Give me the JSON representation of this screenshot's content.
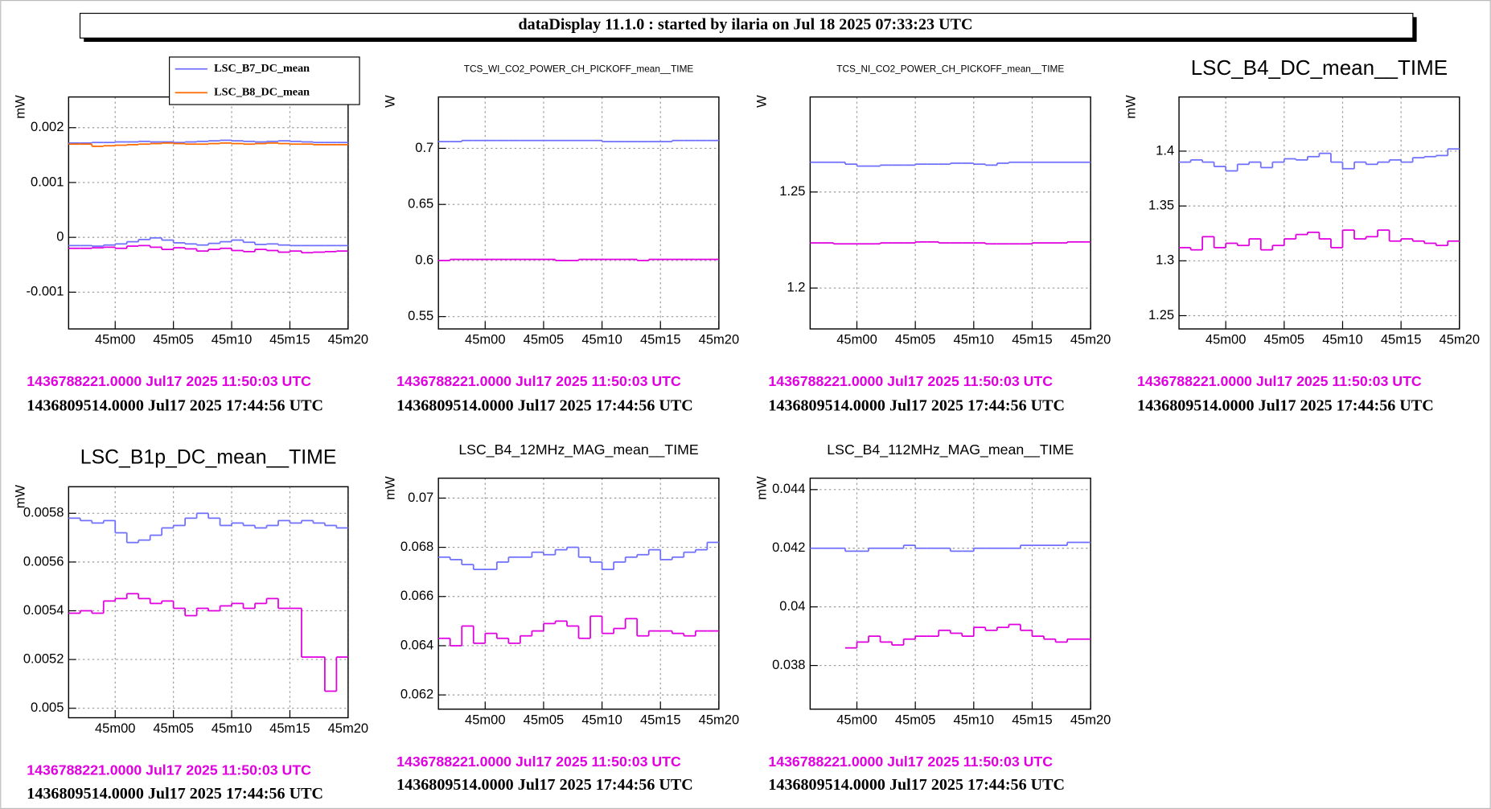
{
  "header": {
    "title": "dataDisplay 11.1.0 : started by ilaria on Jul 18 2025 07:33:23 UTC"
  },
  "chart_data": [
    {
      "type": "line",
      "ylabel": "mW",
      "x": [
        2696,
        2697,
        2698,
        2699,
        2700,
        2701,
        2702,
        2703,
        2704,
        2705,
        2706,
        2707,
        2708,
        2709,
        2710,
        2711,
        2712,
        2713,
        2714,
        2715,
        2716,
        2717,
        2718,
        2719
      ],
      "xlim": [
        2696,
        2720
      ],
      "xticks": [
        {
          "value": 2700,
          "label": "45m00"
        },
        {
          "value": 2705,
          "label": "45m05"
        },
        {
          "value": 2710,
          "label": "45m10"
        },
        {
          "value": 2715,
          "label": "45m15"
        },
        {
          "value": 2720,
          "label": "45m20"
        }
      ],
      "ylim": [
        -0.00167,
        0.00256
      ],
      "yticks": [
        -0.001,
        0,
        0.001,
        0.002
      ],
      "grid": true,
      "series": [
        {
          "name": "LSC_B7_DC_mean",
          "color": "#7070ff",
          "values": [
            0.00172,
            0.00172,
            0.00173,
            0.00173,
            0.00174,
            0.00174,
            0.00175,
            0.00174,
            0.00174,
            0.00173,
            0.00174,
            0.00175,
            0.00176,
            0.00177,
            0.00176,
            0.00175,
            0.00174,
            0.00175,
            0.00176,
            0.00175,
            0.00174,
            0.00173,
            0.00173,
            0.00173
          ]
        },
        {
          "name": "LSC_B8_DC_mean",
          "color": "#ff6a00",
          "values": [
            0.0017,
            0.0017,
            0.00166,
            0.00167,
            0.00168,
            0.00169,
            0.0017,
            0.00171,
            0.00172,
            0.00171,
            0.0017,
            0.0017,
            0.00171,
            0.00172,
            0.00171,
            0.0017,
            0.00171,
            0.00172,
            0.00171,
            0.0017,
            0.0017,
            0.00169,
            0.00169,
            0.00169
          ]
        },
        {
          "color": "#7070ff",
          "values": [
            -0.00015,
            -0.00015,
            -0.00016,
            -0.00014,
            -0.00012,
            -8e-05,
            -4e-05,
            -1e-05,
            -5e-05,
            -0.0001,
            -0.00012,
            -0.00014,
            -0.00011,
            -8e-05,
            -5e-05,
            -9e-05,
            -0.00013,
            -0.00012,
            -0.00014,
            -0.00015,
            -0.00015,
            -0.00015,
            -0.00015,
            -0.00015
          ]
        },
        {
          "color": "#e000e0",
          "values": [
            -0.0002,
            -0.0002,
            -0.00019,
            -0.00018,
            -0.0002,
            -0.00016,
            -0.00015,
            -0.00018,
            -0.00022,
            -0.00019,
            -0.00021,
            -0.00025,
            -0.00022,
            -0.0002,
            -0.00024,
            -0.00026,
            -0.00022,
            -0.00024,
            -0.00027,
            -0.00025,
            -0.00028,
            -0.00027,
            -0.00026,
            -0.00025
          ]
        }
      ],
      "annotations": [
        "1436788221.0000 Jul17 2025 11:50:03 UTC",
        "1436809514.0000 Jul17 2025 17:44:56 UTC"
      ]
    },
    {
      "type": "line",
      "title": "TCS_WI_CO2_POWER_CH_PICKOFF_mean__TIME",
      "ylabel": "W",
      "x": [
        2696,
        2697,
        2698,
        2699,
        2700,
        2701,
        2702,
        2703,
        2704,
        2705,
        2706,
        2707,
        2708,
        2709,
        2710,
        2711,
        2712,
        2713,
        2714,
        2715,
        2716,
        2717,
        2718,
        2719
      ],
      "xlim": [
        2696,
        2720
      ],
      "xticks": [
        {
          "value": 2700,
          "label": "45m00"
        },
        {
          "value": 2705,
          "label": "45m05"
        },
        {
          "value": 2710,
          "label": "45m10"
        },
        {
          "value": 2715,
          "label": "45m15"
        },
        {
          "value": 2720,
          "label": "45m20"
        }
      ],
      "ylim": [
        0.539,
        0.7458
      ],
      "yticks": [
        0.55,
        0.6,
        0.65,
        0.7
      ],
      "grid": true,
      "series": [
        {
          "color": "#7070ff",
          "values": [
            0.706,
            0.706,
            0.707,
            0.707,
            0.707,
            0.707,
            0.707,
            0.707,
            0.707,
            0.707,
            0.707,
            0.707,
            0.707,
            0.707,
            0.706,
            0.706,
            0.706,
            0.706,
            0.706,
            0.706,
            0.707,
            0.707,
            0.707,
            0.707
          ]
        },
        {
          "color": "#e000e0",
          "values": [
            0.6,
            0.601,
            0.601,
            0.601,
            0.601,
            0.601,
            0.601,
            0.601,
            0.601,
            0.601,
            0.6,
            0.6,
            0.601,
            0.601,
            0.601,
            0.601,
            0.601,
            0.6,
            0.601,
            0.601,
            0.601,
            0.601,
            0.601,
            0.601
          ]
        }
      ],
      "annotations": [
        "1436788221.0000 Jul17 2025 11:50:03 UTC",
        "1436809514.0000 Jul17 2025 17:44:56 UTC"
      ]
    },
    {
      "type": "line",
      "title": "TCS_NI_CO2_POWER_CH_PICKOFF_mean__TIME",
      "ylabel": "W",
      "x": [
        2696,
        2697,
        2698,
        2699,
        2700,
        2701,
        2702,
        2703,
        2704,
        2705,
        2706,
        2707,
        2708,
        2709,
        2710,
        2711,
        2712,
        2713,
        2714,
        2715,
        2716,
        2717,
        2718,
        2719
      ],
      "xlim": [
        2696,
        2720
      ],
      "xticks": [
        {
          "value": 2700,
          "label": "45m00"
        },
        {
          "value": 2705,
          "label": "45m05"
        },
        {
          "value": 2710,
          "label": "45m10"
        },
        {
          "value": 2715,
          "label": "45m15"
        },
        {
          "value": 2720,
          "label": "45m20"
        }
      ],
      "ylim": [
        1.1787,
        1.2995
      ],
      "yticks": [
        1.2,
        1.25
      ],
      "grid": true,
      "series": [
        {
          "color": "#7070ff",
          "values": [
            1.2655,
            1.2655,
            1.2655,
            1.2645,
            1.2635,
            1.2635,
            1.264,
            1.264,
            1.264,
            1.2645,
            1.2645,
            1.2645,
            1.265,
            1.265,
            1.2645,
            1.264,
            1.265,
            1.2655,
            1.2655,
            1.2655,
            1.2655,
            1.2655,
            1.2655,
            1.2655
          ]
        },
        {
          "color": "#e000e0",
          "values": [
            1.2235,
            1.2235,
            1.223,
            1.223,
            1.223,
            1.223,
            1.2235,
            1.2235,
            1.2235,
            1.224,
            1.224,
            1.2235,
            1.2235,
            1.2235,
            1.2235,
            1.223,
            1.223,
            1.223,
            1.223,
            1.2235,
            1.2235,
            1.2235,
            1.224,
            1.224
          ]
        }
      ],
      "annotations": [
        "1436788221.0000 Jul17 2025 11:50:03 UTC",
        "1436809514.0000 Jul17 2025 17:44:56 UTC"
      ]
    },
    {
      "type": "line",
      "title": "LSC_B4_DC_mean__TIME",
      "ylabel": "mW",
      "x": [
        2696,
        2697,
        2698,
        2699,
        2700,
        2701,
        2702,
        2703,
        2704,
        2705,
        2706,
        2707,
        2708,
        2709,
        2710,
        2711,
        2712,
        2713,
        2714,
        2715,
        2716,
        2717,
        2718,
        2719
      ],
      "xlim": [
        2696,
        2720
      ],
      "xticks": [
        {
          "value": 2700,
          "label": "45m00"
        },
        {
          "value": 2705,
          "label": "45m05"
        },
        {
          "value": 2710,
          "label": "45m10"
        },
        {
          "value": 2715,
          "label": "45m15"
        },
        {
          "value": 2720,
          "label": "45m20"
        }
      ],
      "ylim": [
        1.2379,
        1.4494
      ],
      "yticks": [
        1.25,
        1.3,
        1.35,
        1.4
      ],
      "grid": true,
      "series": [
        {
          "color": "#7070ff",
          "values": [
            1.39,
            1.392,
            1.39,
            1.386,
            1.382,
            1.388,
            1.39,
            1.385,
            1.39,
            1.393,
            1.392,
            1.395,
            1.398,
            1.39,
            1.384,
            1.39,
            1.388,
            1.39,
            1.392,
            1.39,
            1.394,
            1.395,
            1.396,
            1.402
          ]
        },
        {
          "color": "#e000e0",
          "values": [
            1.312,
            1.31,
            1.322,
            1.312,
            1.316,
            1.314,
            1.32,
            1.31,
            1.314,
            1.32,
            1.324,
            1.326,
            1.32,
            1.312,
            1.328,
            1.32,
            1.322,
            1.328,
            1.318,
            1.32,
            1.318,
            1.316,
            1.314,
            1.318
          ]
        }
      ],
      "annotations": [
        "1436788221.0000 Jul17 2025 11:50:03 UTC",
        "1436809514.0000 Jul17 2025 17:44:56 UTC"
      ]
    },
    {
      "type": "line",
      "title": "LSC_B1p_DC_mean__TIME",
      "ylabel": "mW",
      "x": [
        2696,
        2697,
        2698,
        2699,
        2700,
        2701,
        2702,
        2703,
        2704,
        2705,
        2706,
        2707,
        2708,
        2709,
        2710,
        2711,
        2712,
        2713,
        2714,
        2715,
        2716,
        2717,
        2718,
        2719
      ],
      "xlim": [
        2696,
        2720
      ],
      "xticks": [
        {
          "value": 2700,
          "label": "45m00"
        },
        {
          "value": 2705,
          "label": "45m05"
        },
        {
          "value": 2710,
          "label": "45m10"
        },
        {
          "value": 2715,
          "label": "45m15"
        },
        {
          "value": 2720,
          "label": "45m20"
        }
      ],
      "ylim": [
        0.004961,
        0.005909
      ],
      "yticks": [
        0.005,
        0.0052,
        0.0054,
        0.0056,
        0.0058
      ],
      "grid": true,
      "series": [
        {
          "color": "#7070ff",
          "values": [
            0.00578,
            0.00577,
            0.00576,
            0.00577,
            0.00572,
            0.00568,
            0.00569,
            0.00571,
            0.00574,
            0.00575,
            0.00578,
            0.0058,
            0.00578,
            0.00575,
            0.00576,
            0.00575,
            0.00574,
            0.00575,
            0.00577,
            0.00576,
            0.00577,
            0.00576,
            0.00575,
            0.00574
          ]
        },
        {
          "color": "#e000e0",
          "values": [
            0.00539,
            0.0054,
            0.00539,
            0.00544,
            0.00545,
            0.00547,
            0.00545,
            0.00543,
            0.00544,
            0.00541,
            0.00538,
            0.00541,
            0.0054,
            0.00542,
            0.00543,
            0.00541,
            0.00543,
            0.00545,
            0.00541,
            0.00541,
            0.00521,
            0.00521,
            0.00507,
            0.00521
          ]
        }
      ],
      "annotations": [
        "1436788221.0000 Jul17 2025 11:50:03 UTC",
        "1436809514.0000 Jul17 2025 17:44:56 UTC"
      ]
    },
    {
      "type": "line",
      "title": "LSC_B4_12MHz_MAG_mean__TIME",
      "ylabel": "mW",
      "x": [
        2696,
        2697,
        2698,
        2699,
        2700,
        2701,
        2702,
        2703,
        2704,
        2705,
        2706,
        2707,
        2708,
        2709,
        2710,
        2711,
        2712,
        2713,
        2714,
        2715,
        2716,
        2717,
        2718,
        2719
      ],
      "xlim": [
        2696,
        2720
      ],
      "xticks": [
        {
          "value": 2700,
          "label": "45m00"
        },
        {
          "value": 2705,
          "label": "45m05"
        },
        {
          "value": 2710,
          "label": "45m10"
        },
        {
          "value": 2715,
          "label": "45m15"
        },
        {
          "value": 2720,
          "label": "45m20"
        }
      ],
      "ylim": [
        0.06142,
        0.07081
      ],
      "yticks": [
        0.062,
        0.064,
        0.066,
        0.068,
        0.07
      ],
      "grid": true,
      "series": [
        {
          "color": "#7070ff",
          "values": [
            0.0676,
            0.0675,
            0.0673,
            0.0671,
            0.0671,
            0.0674,
            0.0676,
            0.0676,
            0.0678,
            0.0677,
            0.0679,
            0.068,
            0.0676,
            0.0674,
            0.0671,
            0.0674,
            0.0676,
            0.0677,
            0.0679,
            0.0675,
            0.0676,
            0.0678,
            0.0679,
            0.0682
          ]
        },
        {
          "color": "#e000e0",
          "values": [
            0.0643,
            0.064,
            0.0648,
            0.0641,
            0.0645,
            0.0643,
            0.0641,
            0.0644,
            0.0646,
            0.0649,
            0.065,
            0.0648,
            0.0643,
            0.0652,
            0.0645,
            0.0647,
            0.0651,
            0.0644,
            0.0646,
            0.0646,
            0.0645,
            0.0644,
            0.0646,
            0.0646
          ]
        }
      ],
      "annotations": [
        "1436788221.0000 Jul17 2025 11:50:03 UTC",
        "1436809514.0000 Jul17 2025 17:44:56 UTC"
      ]
    },
    {
      "type": "line",
      "title": "LSC_B4_112MHz_MAG_mean__TIME",
      "ylabel": "mW",
      "x": [
        2696,
        2697,
        2698,
        2699,
        2700,
        2701,
        2702,
        2703,
        2704,
        2705,
        2706,
        2707,
        2708,
        2709,
        2710,
        2711,
        2712,
        2713,
        2714,
        2715,
        2716,
        2717,
        2718,
        2719
      ],
      "xlim": [
        2696,
        2720
      ],
      "xticks": [
        {
          "value": 2700,
          "label": "45m00"
        },
        {
          "value": 2705,
          "label": "45m05"
        },
        {
          "value": 2710,
          "label": "45m10"
        },
        {
          "value": 2715,
          "label": "45m15"
        },
        {
          "value": 2720,
          "label": "45m20"
        }
      ],
      "ylim": [
        0.03651,
        0.04439
      ],
      "yticks": [
        0.038,
        0.04,
        0.042,
        0.044
      ],
      "grid": true,
      "series": [
        {
          "color": "#7070ff",
          "values": [
            0.042,
            0.042,
            0.042,
            0.0419,
            0.0419,
            0.042,
            0.042,
            0.042,
            0.0421,
            0.042,
            0.042,
            0.042,
            0.0419,
            0.0419,
            0.042,
            0.042,
            0.042,
            0.042,
            0.0421,
            0.0421,
            0.0421,
            0.0421,
            0.0422,
            0.0422
          ]
        },
        {
          "color": "#e000e0",
          "values": [
            null,
            null,
            null,
            0.0386,
            0.0388,
            0.039,
            0.0388,
            0.0387,
            0.0389,
            0.039,
            0.039,
            0.0392,
            0.0391,
            0.039,
            0.0393,
            0.0392,
            0.0393,
            0.0394,
            0.0392,
            0.039,
            0.0389,
            0.0388,
            0.0389,
            0.0389
          ]
        }
      ],
      "annotations": [
        "1436788221.0000 Jul17 2025 11:50:03 UTC",
        "1436809514.0000 Jul17 2025 17:44:56 UTC"
      ]
    }
  ]
}
